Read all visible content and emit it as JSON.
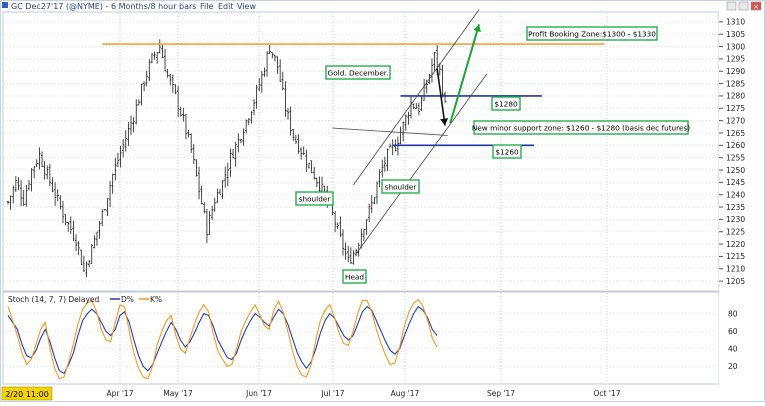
{
  "window": {
    "title": "GC Dec27'17 (@NYME) - 6 Months/8 hour bars",
    "menus": [
      "File",
      "Edit",
      "View"
    ],
    "time_readout": "2/20 11:00"
  },
  "chart_data": [
    {
      "type": "line",
      "title": "",
      "price_ticks": [
        1205,
        1210,
        1215,
        1220,
        1225,
        1230,
        1235,
        1240,
        1245,
        1250,
        1255,
        1260,
        1265,
        1270,
        1275,
        1280,
        1285,
        1290,
        1295,
        1300,
        1305,
        1310
      ],
      "ylim": [
        1201,
        1314
      ],
      "month_labels": [
        "Apr '17",
        "May '17",
        "Jun '17",
        "Jul '17",
        "Aug '17",
        "Sep '17",
        "Oct '17"
      ],
      "series_close": [
        {
          "x": 0,
          "y": 1237
        },
        {
          "x": 3,
          "y": 1245
        },
        {
          "x": 6,
          "y": 1238
        },
        {
          "x": 9,
          "y": 1250
        },
        {
          "x": 12,
          "y": 1256
        },
        {
          "x": 15,
          "y": 1248
        },
        {
          "x": 18,
          "y": 1240
        },
        {
          "x": 22,
          "y": 1230
        },
        {
          "x": 26,
          "y": 1222
        },
        {
          "x": 29,
          "y": 1209
        },
        {
          "x": 32,
          "y": 1218
        },
        {
          "x": 36,
          "y": 1232
        },
        {
          "x": 40,
          "y": 1248
        },
        {
          "x": 44,
          "y": 1260
        },
        {
          "x": 48,
          "y": 1272
        },
        {
          "x": 52,
          "y": 1286
        },
        {
          "x": 55,
          "y": 1295
        },
        {
          "x": 58,
          "y": 1300
        },
        {
          "x": 61,
          "y": 1288
        },
        {
          "x": 64,
          "y": 1280
        },
        {
          "x": 67,
          "y": 1270
        },
        {
          "x": 70,
          "y": 1258
        },
        {
          "x": 73,
          "y": 1242
        },
        {
          "x": 76,
          "y": 1226
        },
        {
          "x": 79,
          "y": 1238
        },
        {
          "x": 82,
          "y": 1245
        },
        {
          "x": 85,
          "y": 1255
        },
        {
          "x": 88,
          "y": 1262
        },
        {
          "x": 91,
          "y": 1270
        },
        {
          "x": 94,
          "y": 1278
        },
        {
          "x": 97,
          "y": 1288
        },
        {
          "x": 100,
          "y": 1300
        },
        {
          "x": 103,
          "y": 1292
        },
        {
          "x": 106,
          "y": 1275
        },
        {
          "x": 109,
          "y": 1264
        },
        {
          "x": 112,
          "y": 1258
        },
        {
          "x": 115,
          "y": 1252
        },
        {
          "x": 118,
          "y": 1246
        },
        {
          "x": 121,
          "y": 1240
        },
        {
          "x": 124,
          "y": 1232
        },
        {
          "x": 127,
          "y": 1222
        },
        {
          "x": 130,
          "y": 1213
        },
        {
          "x": 133,
          "y": 1218
        },
        {
          "x": 136,
          "y": 1228
        },
        {
          "x": 139,
          "y": 1236
        },
        {
          "x": 142,
          "y": 1248
        },
        {
          "x": 145,
          "y": 1256
        },
        {
          "x": 148,
          "y": 1260
        },
        {
          "x": 151,
          "y": 1268
        },
        {
          "x": 154,
          "y": 1277
        },
        {
          "x": 157,
          "y": 1275
        },
        {
          "x": 160,
          "y": 1285
        },
        {
          "x": 163,
          "y": 1296
        },
        {
          "x": 165,
          "y": 1290
        },
        {
          "x": 167,
          "y": 1276
        }
      ],
      "annotations": {
        "resistance_level": 1301,
        "upper_blue": 1280,
        "lower_blue": 1260,
        "neckline": {
          "x1": 124,
          "y1": 1267,
          "x2": 168,
          "y2": 1264
        },
        "channel_upper": {
          "x1": 132,
          "y1": 1244,
          "x2": 180,
          "y2": 1315
        },
        "channel_lower": {
          "x1": 133,
          "y1": 1216,
          "x2": 183,
          "y2": 1289
        },
        "green_arrow": {
          "x1": 169,
          "y1": 1269,
          "x2": 180,
          "y2": 1309
        },
        "black_arrow": {
          "x1": 164,
          "y1": 1291,
          "x2": 167,
          "y2": 1268
        }
      },
      "labels": [
        {
          "text": "Profit Booking Zone:$1300 - $1330"
        },
        {
          "text": "Gold. December."
        },
        {
          "text": "$1280"
        },
        {
          "text": "New minor support zone: $1260 - $1280 (basis dec futures)"
        },
        {
          "text": "$1260"
        },
        {
          "text": "shoulder"
        },
        {
          "text": "shoulder"
        },
        {
          "text": "Head"
        }
      ]
    },
    {
      "type": "line",
      "title": "Stoch (14, 7, 7) Delayed",
      "legend": [
        "D%",
        "K%"
      ],
      "ticks": [
        20,
        40,
        60,
        80
      ],
      "ylim": [
        0,
        100
      ],
      "series": [
        {
          "name": "D%",
          "color": "#1f3fb3",
          "values": [
            78,
            70,
            62,
            45,
            32,
            30,
            38,
            52,
            62,
            48,
            30,
            15,
            12,
            22,
            35,
            55,
            72,
            80,
            85,
            80,
            70,
            60,
            55,
            62,
            78,
            82,
            70,
            50,
            32,
            20,
            15,
            22,
            35,
            48,
            60,
            70,
            62,
            50,
            42,
            48,
            58,
            70,
            80,
            78,
            66,
            50,
            40,
            30,
            28,
            35,
            50,
            62,
            72,
            80,
            76,
            70,
            66,
            76,
            85,
            80,
            68,
            52,
            36,
            25,
            18,
            25,
            40,
            58,
            72,
            80,
            75,
            65,
            55,
            50,
            55,
            68,
            82,
            88,
            84,
            72,
            60,
            48,
            38,
            34,
            40,
            55,
            68,
            80,
            88,
            84,
            75,
            62,
            55
          ]
        },
        {
          "name": "K%",
          "color": "#f59a1b",
          "values": [
            88,
            72,
            55,
            35,
            22,
            28,
            45,
            62,
            70,
            40,
            18,
            6,
            8,
            25,
            45,
            68,
            85,
            92,
            95,
            82,
            62,
            50,
            48,
            70,
            90,
            88,
            60,
            35,
            18,
            8,
            6,
            20,
            45,
            60,
            72,
            78,
            55,
            40,
            35,
            52,
            68,
            82,
            90,
            82,
            58,
            38,
            28,
            20,
            22,
            40,
            60,
            72,
            82,
            90,
            78,
            66,
            62,
            84,
            94,
            82,
            60,
            38,
            20,
            10,
            8,
            22,
            50,
            72,
            84,
            90,
            76,
            58,
            46,
            44,
            60,
            80,
            95,
            95,
            82,
            62,
            46,
            32,
            22,
            24,
            42,
            66,
            82,
            92,
            96,
            88,
            72,
            52,
            42
          ]
        }
      ]
    }
  ]
}
